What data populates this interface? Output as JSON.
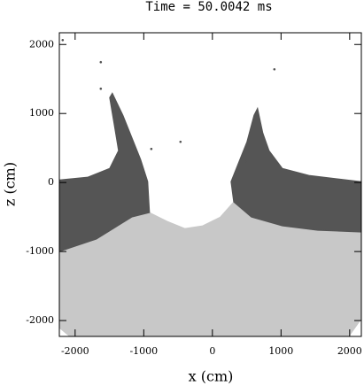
{
  "chart_data": {
    "type": "scatter",
    "title": "Time = 50.0042 ms",
    "x_label": "x (cm)",
    "y_label": "z (cm)",
    "xlim": [
      -2230,
      2170
    ],
    "ylim": [
      -2230,
      2170
    ],
    "xticks": [
      -2000,
      -1000,
      0,
      1000,
      2000
    ],
    "yticks": [
      -2000,
      -1000,
      0,
      1000,
      2000
    ],
    "series": [
      {
        "color": "#c8c8c8",
        "fill": true,
        "x": [
          -2230,
          -1690,
          -1174,
          -916,
          -658,
          -400,
          -142,
          116,
          310,
          568,
          1019,
          1535,
          2170,
          2170,
          1987,
          -2077,
          -2230
        ],
        "y": [
          -1000,
          -820,
          -500,
          -436,
          -564,
          -667,
          -628,
          -500,
          -282,
          -500,
          -628,
          -692,
          -718,
          -1974,
          -2230,
          -2230,
          -2103
        ]
      },
      {
        "color": "#555555",
        "fill": true,
        "x": [
          -2230,
          -1819,
          -1497,
          -1368,
          -1432,
          -1497,
          -1458,
          -1303,
          -1174,
          -1045,
          -942,
          -916,
          -1174,
          -1690,
          -2230
        ],
        "y": [
          38,
          77,
          205,
          462,
          846,
          1231,
          1295,
          974,
          654,
          333,
          13,
          -436,
          -500,
          -820,
          -1000
        ]
      },
      {
        "color": "#555555",
        "fill": true,
        "x": [
          310,
          271,
          374,
          503,
          606,
          658,
          735,
          826,
          1019,
          1406,
          2170,
          2170,
          1535,
          1019,
          568
        ],
        "y": [
          -282,
          13,
          269,
          590,
          974,
          1077,
          718,
          462,
          205,
          103,
          13,
          -718,
          -692,
          -628,
          -500
        ]
      },
      {
        "color": "#555555",
        "fill": false,
        "x": [
          -1626,
          -1626,
          -2181,
          -465,
          -890,
          477,
          903
        ],
        "y": [
          1744,
          1359,
          2064,
          590,
          487,
          308,
          1641
        ]
      }
    ]
  }
}
